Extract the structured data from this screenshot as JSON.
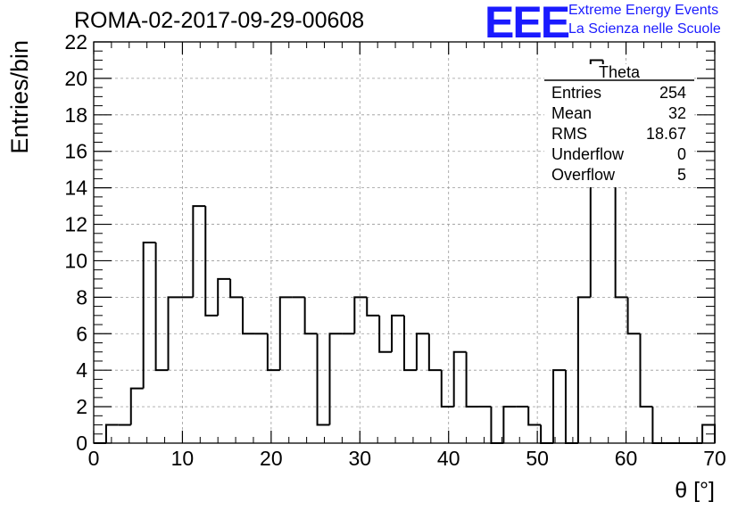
{
  "header": {
    "title": "ROMA-02-2017-09-29-00608",
    "logo_text": "EEE",
    "logo_line1": "Extreme Energy Events",
    "logo_line2": "La Scienza nelle Scuole"
  },
  "colors": {
    "logo": "#1a1aff",
    "hist": "#000000",
    "grid": "#999999"
  },
  "stats": {
    "name": "Theta",
    "rows": [
      {
        "label": "Entries",
        "value": "254"
      },
      {
        "label": "Mean",
        "value": "32"
      },
      {
        "label": "RMS",
        "value": "18.67"
      },
      {
        "label": "Underflow",
        "value": "0"
      },
      {
        "label": "Overflow",
        "value": "5"
      }
    ]
  },
  "chart_data": {
    "type": "bar",
    "title": "ROMA-02-2017-09-29-00608",
    "xlabel": "θ [°]",
    "ylabel": "Entries/bin",
    "xlim": [
      0,
      70
    ],
    "ylim": [
      0,
      22
    ],
    "bin_width": 1.4,
    "xticks": [
      0,
      10,
      20,
      30,
      40,
      50,
      60,
      70
    ],
    "yticks": [
      0,
      2,
      4,
      6,
      8,
      10,
      12,
      14,
      16,
      18,
      20,
      22
    ],
    "grid": true,
    "values": [
      0,
      1,
      1,
      3,
      11,
      4,
      8,
      8,
      13,
      7,
      9,
      8,
      6,
      6,
      4,
      8,
      8,
      6,
      1,
      6,
      6,
      8,
      7,
      5,
      7,
      4,
      6,
      4,
      2,
      5,
      2,
      2,
      0,
      2,
      2,
      1,
      0,
      4,
      0,
      8,
      21,
      18,
      8,
      6,
      2,
      0,
      0,
      0,
      0,
      1
    ]
  }
}
